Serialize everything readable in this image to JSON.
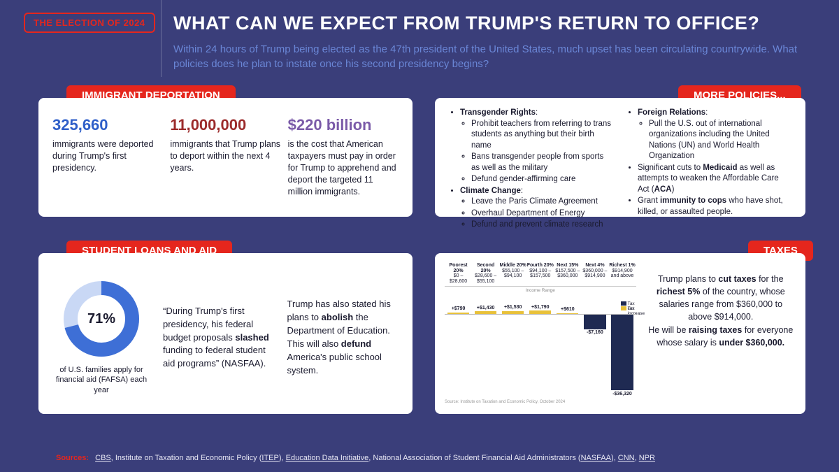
{
  "badge": "THE ELECTION OF 2024",
  "title": "WHAT CAN WE EXPECT FROM TRUMP'S RETURN TO OFFICE?",
  "subtitle": "Within 24 hours of Trump being elected as the 47th president of the United States, much upset has been circulating countrywide. What policies does he plan to instate once his second presidency begins?",
  "colors": {
    "bg": "#3a3e7a",
    "accent": "#e5261d",
    "stat1": "#2f5fc9",
    "stat2": "#9c2b2b",
    "stat3": "#7a5aa8",
    "donutInner": "#c9d8f5",
    "donutOuter": "#3e6fd6",
    "barPos": "#e8c13a",
    "barNeg": "#1f2a52"
  },
  "immigrant": {
    "tag": "IMMIGRANT DEPORTATION",
    "s1": {
      "val": "325,660",
      "desc": "immigrants were deported during Trump's first presidency."
    },
    "s2": {
      "val": "11,000,000",
      "desc": "immigrants that Trump plans to deport within the next 4 years."
    },
    "s3": {
      "val": "$220 billion",
      "desc": "is the cost that American taxpayers must pay in order for Trump to apprehend and deport the targeted 11 million immigrants."
    }
  },
  "policies": {
    "tag": "MORE POLICIES...",
    "left": {
      "h1": "Transgender Rights",
      "i1": "Prohibit teachers from referring to trans students as anything but their birth name",
      "i2": "Bans transgender people from sports as well as the military",
      "i3": "Defund gender-affirming care",
      "h2": "Climate Change",
      "i4": "Leave the Paris Climate Agreement",
      "i5": "Overhaul Department of Energy",
      "i6": "Defund and prevent climate research"
    },
    "right": {
      "h1": "Foreign Relations",
      "i1": "Pull the U.S. out of international organizations including the United Nations (UN) and World Health Organization",
      "i2_a": "Significant cuts to ",
      "i2_b": "Medicaid",
      "i2_c": " as well as attempts to weaken the Affordable Care Act (",
      "i2_d": "ACA",
      "i2_e": ")",
      "i3_a": "Grant ",
      "i3_b": "immunity to cops",
      "i3_c": " who have shot, killed, or assaulted people."
    }
  },
  "loans": {
    "tag": "STUDENT LOANS AND AID",
    "donut": {
      "pct": 71,
      "label": "71%",
      "caption": "of U.S. families apply for financial aid (FAFSA) each year"
    },
    "c1_a": "“During Trump's first presidency, his federal budget proposals ",
    "c1_b": "slashed",
    "c1_c": " funding to federal student aid programs” (NASFAA).",
    "c2_a": "Trump has also stated his plans to ",
    "c2_b": "abolish",
    "c2_c": " the Department of Education. This will also ",
    "c2_d": "defund",
    "c2_e": " America's public school system."
  },
  "taxes": {
    "tag": "TAXES",
    "chart": {
      "incomeLabel": "Income Range",
      "cats": [
        {
          "t": "Poorest 20%",
          "r": "$0 – $28,600",
          "v": 790,
          "lab": "+$790"
        },
        {
          "t": "Second 20%",
          "r": "$28,600 – $55,100",
          "v": 1430,
          "lab": "+$1,430"
        },
        {
          "t": "Middle 20%",
          "r": "$55,100 – $94,100",
          "v": 1530,
          "lab": "+$1,530"
        },
        {
          "t": "Fourth 20%",
          "r": "$94,100 – $157,500",
          "v": 1790,
          "lab": "+$1,790"
        },
        {
          "t": "Next 15%",
          "r": "$157,500 – $360,000",
          "v": 610,
          "lab": "+$610"
        },
        {
          "t": "Next 4%",
          "r": "$360,000 – $914,900",
          "v": -7160,
          "lab": "-$7,160"
        },
        {
          "t": "Richest 1%",
          "r": "$914,900 and above",
          "v": -36320,
          "lab": "-$36,320"
        }
      ],
      "legend": {
        "pos": "Tax increase",
        "neg": "Tax cut"
      },
      "source": "Source: Institute on Taxation and Economic Policy, October 2024",
      "maxAbs": 36320
    },
    "t1": "Trump plans to ",
    "t2": "cut taxes",
    "t3": " for the ",
    "t4": "richest 5%",
    "t5": " of the country, whose salaries range from $360,000 to above $914,000.",
    "t6": "He will be ",
    "t7": "raising taxes",
    "t8": " for everyone whose salary is ",
    "t9": "under $360,000."
  },
  "sources": {
    "label": "Sources:",
    "items": [
      "CBS",
      "Institute on Taxation and Economic Policy (",
      "ITEP",
      ")",
      "Education Data Initiative",
      "National Association of Student Financial Aid Administrators (",
      "NASFAA",
      ")",
      "CNN",
      "NPR"
    ]
  }
}
